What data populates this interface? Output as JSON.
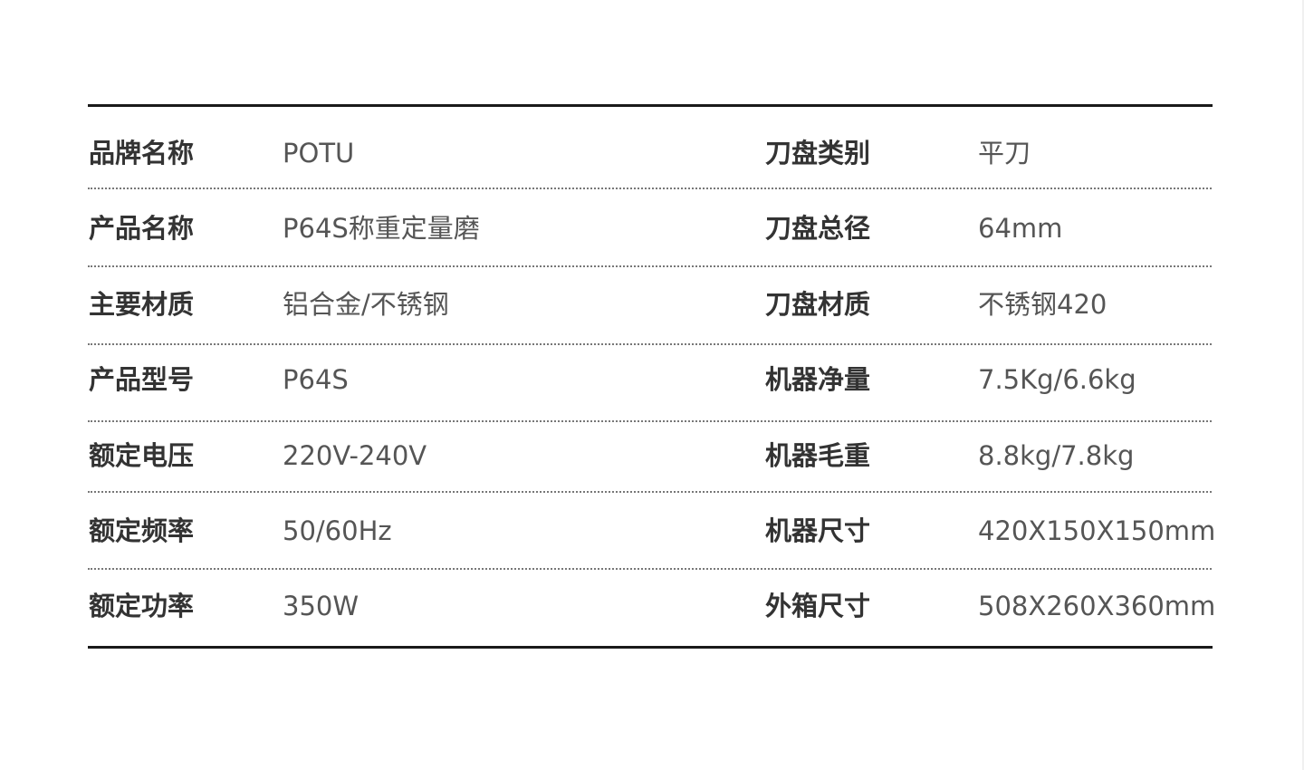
{
  "rows": [
    {
      "left_label": "品牌名称",
      "left_value": "POTU",
      "right_label": "刀盘类别",
      "right_value": "平刀"
    },
    {
      "left_label": "产品名称",
      "left_value": "P64S称重定量磨",
      "right_label": "刀盘总径",
      "right_value": "64mm"
    },
    {
      "left_label": "主要材质",
      "left_value": "铝合金/不锈钢",
      "right_label": "刀盘材质",
      "right_value": "不锈钢420"
    },
    {
      "left_label": "产品型号",
      "left_value": "P64S",
      "right_label": "机器净量",
      "right_value": "7.5Kg/6.6kg"
    },
    {
      "left_label": "额定电压",
      "left_value": "220V-240V",
      "right_label": "机器毛重",
      "right_value": "8.8kg/7.8kg"
    },
    {
      "left_label": "额定频率",
      "left_value": "50/60Hz",
      "right_label": "机器尺寸",
      "right_value": "420X150X150mm"
    },
    {
      "left_label": "额定功率",
      "left_value": "350W",
      "right_label": "外箱尺寸",
      "right_value": "508X260X360mm"
    }
  ]
}
